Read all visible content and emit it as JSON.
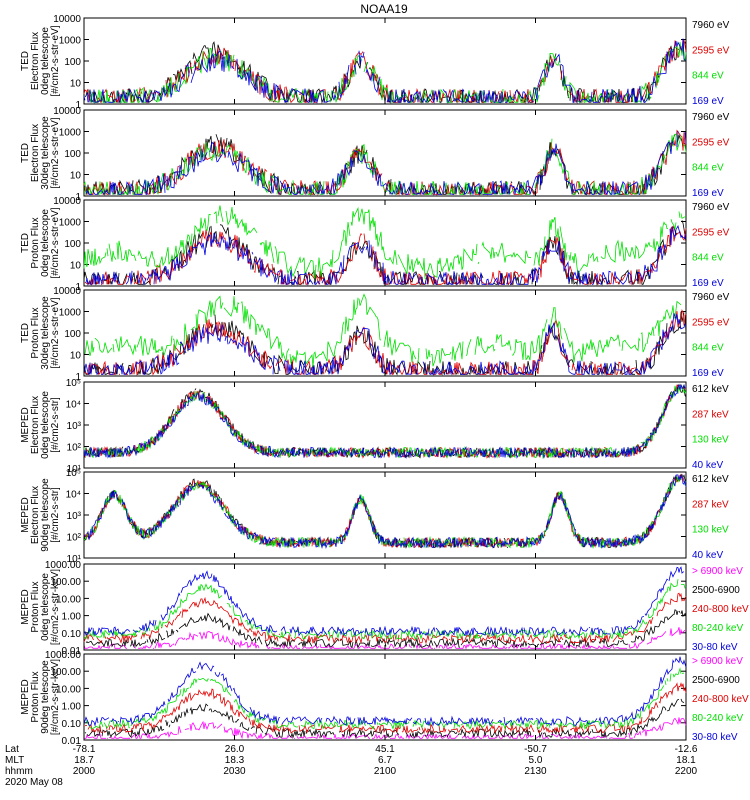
{
  "title": "NOAA19",
  "colors": {
    "black": "#000000",
    "red": "#e00000",
    "green": "#00e000",
    "blue": "#0000e0",
    "magenta": "#ff00ff"
  },
  "chart_data": [
    {
      "type": "line",
      "ylabel": [
        "TED",
        "Electron Flux",
        "0deg telescope",
        "[#/cm2-s-str-eV]"
      ],
      "yscale": "log",
      "ylim": [
        1,
        10000
      ],
      "yticks": [
        "10000",
        "1000",
        "100",
        "10",
        "1"
      ],
      "legend": [
        {
          "label": "7960 eV",
          "color": "black"
        },
        {
          "label": "2595 eV",
          "color": "red"
        },
        {
          "label": "844 eV",
          "color": "green"
        },
        {
          "label": "169 eV",
          "color": "blue"
        }
      ]
    },
    {
      "type": "line",
      "ylabel": [
        "TED",
        "Electron Flux",
        "30deg telescope",
        "[#/cm2-s-str-eV]"
      ],
      "yscale": "log",
      "ylim": [
        1,
        10000
      ],
      "yticks": [
        "10000",
        "1000",
        "100",
        "10",
        "1"
      ],
      "legend": [
        {
          "label": "7960 eV",
          "color": "black"
        },
        {
          "label": "2595 eV",
          "color": "red"
        },
        {
          "label": "844 eV",
          "color": "green"
        },
        {
          "label": "169 eV",
          "color": "blue"
        }
      ]
    },
    {
      "type": "line",
      "ylabel": [
        "TED",
        "Proton Flux",
        "0deg telescope",
        "[#/cm2-s-str-eV]"
      ],
      "yscale": "log",
      "ylim": [
        1,
        10000
      ],
      "yticks": [
        "10000",
        "1000",
        "100",
        "10",
        "1"
      ],
      "legend": [
        {
          "label": "7960 eV",
          "color": "black"
        },
        {
          "label": "2595 eV",
          "color": "red"
        },
        {
          "label": "844 eV",
          "color": "green"
        },
        {
          "label": "169 eV",
          "color": "blue"
        }
      ]
    },
    {
      "type": "line",
      "ylabel": [
        "TED",
        "Proton Flux",
        "30deg telescope",
        "[#/cm2-s-str-eV]"
      ],
      "yscale": "log",
      "ylim": [
        1,
        10000
      ],
      "yticks": [
        "10000",
        "1000",
        "100",
        "10",
        "1"
      ],
      "legend": [
        {
          "label": "7960 eV",
          "color": "black"
        },
        {
          "label": "2595 eV",
          "color": "red"
        },
        {
          "label": "844 eV",
          "color": "green"
        },
        {
          "label": "169 eV",
          "color": "blue"
        }
      ]
    },
    {
      "type": "line",
      "ylabel": [
        "MEPED",
        "Electron Flux",
        "0deg telescope",
        "[#/cm2-s-str]"
      ],
      "yscale": "log",
      "ylim": [
        10,
        100000
      ],
      "yticks": [
        "10⁵",
        "10⁴",
        "10³",
        "10²",
        "10¹"
      ],
      "legend": [
        {
          "label": "612 keV",
          "color": "black"
        },
        {
          "label": "287 keV",
          "color": "red"
        },
        {
          "label": "130 keV",
          "color": "green"
        },
        {
          "label": "40 keV",
          "color": "blue"
        }
      ]
    },
    {
      "type": "line",
      "ylabel": [
        "MEPED",
        "Electron Flux",
        "90deg telescope",
        "[#/cm2-s-str]"
      ],
      "yscale": "log",
      "ylim": [
        10,
        100000
      ],
      "yticks": [
        "10⁵",
        "10⁴",
        "10³",
        "10²",
        "10¹"
      ],
      "legend": [
        {
          "label": "612 keV",
          "color": "black"
        },
        {
          "label": "287 keV",
          "color": "red"
        },
        {
          "label": "130 keV",
          "color": "green"
        },
        {
          "label": "40 keV",
          "color": "blue"
        }
      ]
    },
    {
      "type": "line",
      "ylabel": [
        "MEPED",
        "Proton Flux",
        "0deg telescope",
        "[#/cm2-s-str-keV]"
      ],
      "yscale": "log",
      "ylim": [
        0.01,
        1000
      ],
      "yticks": [
        "1000.00",
        "100.00",
        "10.00",
        "1.00",
        "0.10",
        "0.01"
      ],
      "legend": [
        {
          "label": "> 6900 keV",
          "color": "magenta"
        },
        {
          "label": "2500-6900",
          "color": "black"
        },
        {
          "label": "240-800 keV",
          "color": "red"
        },
        {
          "label": "80-240 keV",
          "color": "green"
        },
        {
          "label": "30-80 keV",
          "color": "blue"
        }
      ]
    },
    {
      "type": "line",
      "ylabel": [
        "MEPED",
        "Proton Flux",
        "90deg telescope",
        "[#/cm2-s-str-keV]"
      ],
      "yscale": "log",
      "ylim": [
        0.01,
        1000
      ],
      "yticks": [
        "1000.00",
        "100.00",
        "10.00",
        "1.00",
        "0.10",
        "0.01"
      ],
      "legend": [
        {
          "label": "> 6900 keV",
          "color": "magenta"
        },
        {
          "label": "2500-6900",
          "color": "black"
        },
        {
          "label": "240-800 keV",
          "color": "red"
        },
        {
          "label": "80-240 keV",
          "color": "green"
        },
        {
          "label": "30-80 keV",
          "color": "blue"
        }
      ]
    }
  ],
  "xaxis": {
    "row_labels": [
      "Lat",
      "MLT",
      "hhmm",
      "2020 May 08"
    ],
    "ticks": [
      {
        "lat": "-78.1",
        "mlt": "18.7",
        "hhmm": "2000"
      },
      {
        "lat": "26.0",
        "mlt": "18.3",
        "hhmm": "2030"
      },
      {
        "lat": "45.1",
        "mlt": "6.7",
        "hhmm": "2100"
      },
      {
        "lat": "-50.7",
        "mlt": "5.0",
        "hhmm": "2130"
      },
      {
        "lat": "-12.6",
        "mlt": "18.1",
        "hhmm": "2200"
      }
    ]
  }
}
